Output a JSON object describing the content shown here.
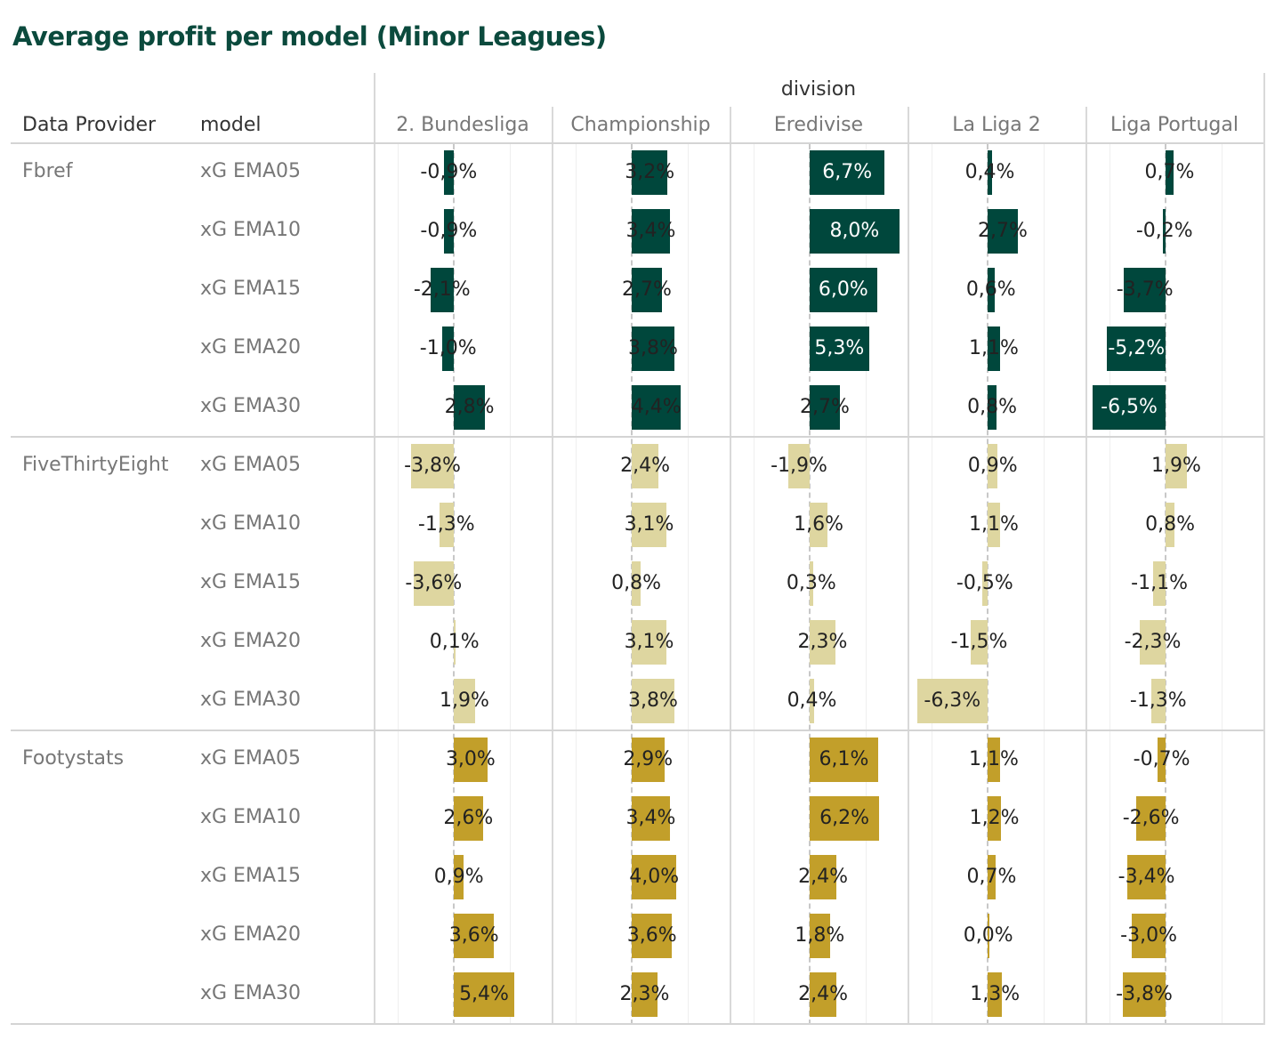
{
  "chart_data": {
    "type": "bar",
    "title": "Average profit per model (Minor Leagues)",
    "row_headers": [
      "Data Provider",
      "model"
    ],
    "column_group_label": "division",
    "divisions": [
      "2. Bundesliga",
      "Championship",
      "Eredivise",
      "La Liga 2",
      "Liga Portugal"
    ],
    "models": [
      "xG EMA05",
      "xG EMA10",
      "xG EMA15",
      "xG EMA20",
      "xG EMA30"
    ],
    "unit": "%",
    "series": [
      {
        "name": "Fbref",
        "color": "#00473c",
        "values": [
          [
            -0.9,
            3.2,
            6.7,
            0.4,
            0.7
          ],
          [
            -0.9,
            3.4,
            8.0,
            2.7,
            -0.2
          ],
          [
            -2.1,
            2.7,
            6.0,
            0.6,
            -3.7
          ],
          [
            -1.0,
            3.8,
            5.3,
            1.1,
            -5.2
          ],
          [
            2.8,
            4.4,
            2.7,
            0.8,
            -6.5
          ]
        ]
      },
      {
        "name": "FiveThirtyEight",
        "color": "#ded6a0",
        "values": [
          [
            -3.8,
            2.4,
            -1.9,
            0.9,
            1.9
          ],
          [
            -1.3,
            3.1,
            1.6,
            1.1,
            0.8
          ],
          [
            -3.6,
            0.8,
            0.3,
            -0.5,
            -1.1
          ],
          [
            0.1,
            3.1,
            2.3,
            -1.5,
            -2.3
          ],
          [
            1.9,
            3.8,
            0.4,
            -6.3,
            -1.3
          ]
        ]
      },
      {
        "name": "Footystats",
        "color": "#c29f2a",
        "values": [
          [
            3.0,
            2.9,
            6.1,
            1.1,
            -0.7
          ],
          [
            2.6,
            3.4,
            6.2,
            1.2,
            -2.6
          ],
          [
            0.9,
            4.0,
            2.4,
            0.7,
            -3.4
          ],
          [
            3.6,
            3.6,
            1.8,
            0.0,
            -3.0
          ],
          [
            5.4,
            2.3,
            2.4,
            1.3,
            -3.8
          ]
        ]
      }
    ],
    "xlim": [
      -8,
      8
    ]
  }
}
